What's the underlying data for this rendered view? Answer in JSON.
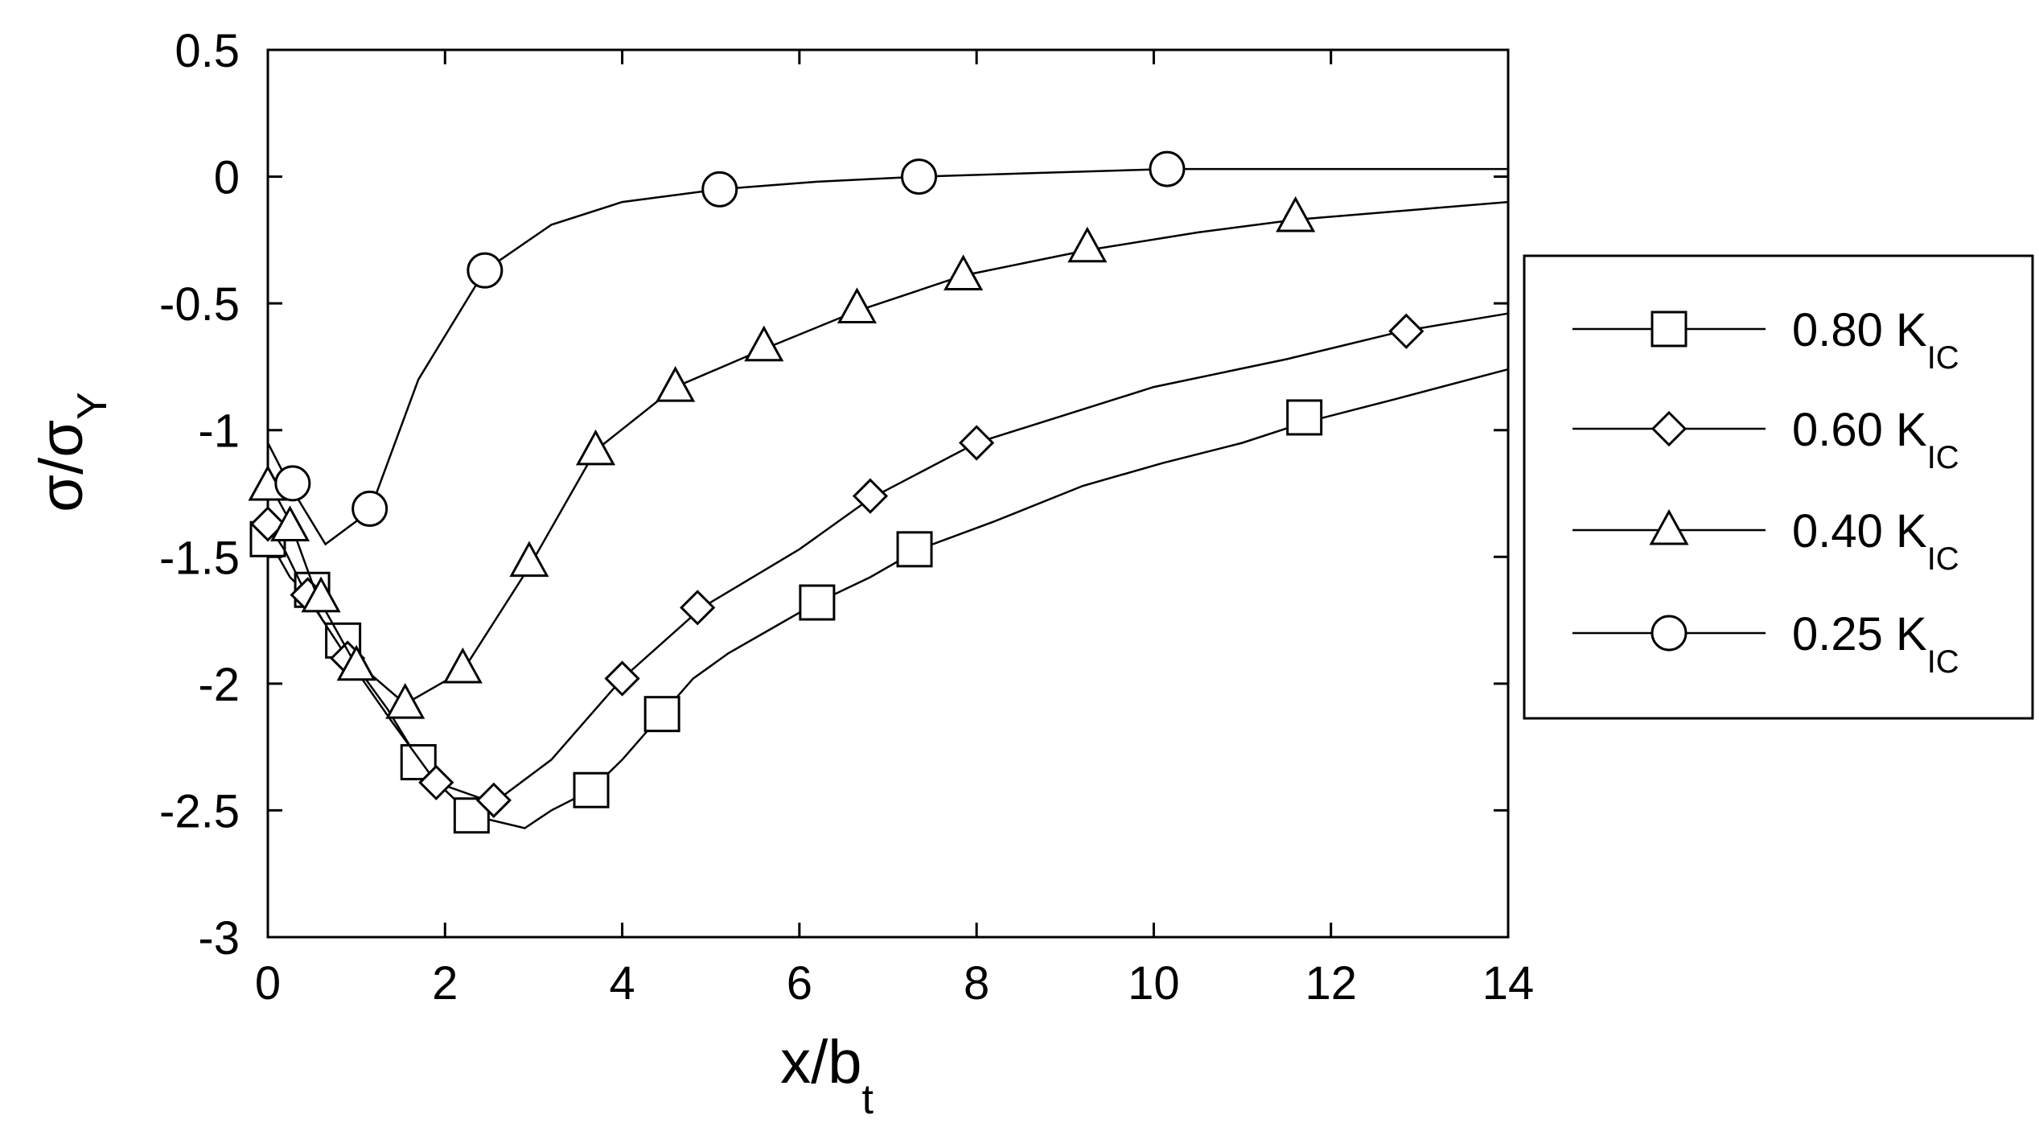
{
  "chart_data": {
    "type": "line",
    "title": "",
    "xlabel": "x/b",
    "xlabel_subscript": "t",
    "ylabel": "σ/σ",
    "ylabel_subscript": "Y",
    "xlim": [
      0,
      14
    ],
    "ylim": [
      -3,
      0.5
    ],
    "x_ticks": [
      0,
      2,
      4,
      6,
      8,
      10,
      12,
      14
    ],
    "x_tick_labels": [
      "0",
      "2",
      "4",
      "6",
      "8",
      "10",
      "12",
      "14"
    ],
    "y_ticks": [
      0.5,
      0,
      -0.5,
      -1,
      -1.5,
      -2,
      -2.5,
      -3
    ],
    "y_tick_labels": [
      "0.5",
      "0",
      "-0.5",
      "-1",
      "-1.5",
      "-2",
      "-2.5",
      "-3"
    ],
    "grid": false,
    "legend_position": "right",
    "series": [
      {
        "name": "0.80 K",
        "name_subscript": "IC",
        "marker": "square",
        "line": [
          [
            0,
            -1.42
          ],
          [
            0.12,
            -1.5
          ],
          [
            0.25,
            -1.58
          ],
          [
            0.45,
            -1.65
          ],
          [
            0.62,
            -1.75
          ],
          [
            0.85,
            -1.85
          ],
          [
            1.1,
            -1.98
          ],
          [
            1.35,
            -2.1
          ],
          [
            1.7,
            -2.3
          ],
          [
            2.0,
            -2.42
          ],
          [
            2.3,
            -2.52
          ],
          [
            2.9,
            -2.57
          ],
          [
            3.2,
            -2.5
          ],
          [
            3.65,
            -2.42
          ],
          [
            4.0,
            -2.3
          ],
          [
            4.45,
            -2.12
          ],
          [
            4.8,
            -1.98
          ],
          [
            5.2,
            -1.88
          ],
          [
            5.7,
            -1.78
          ],
          [
            6.2,
            -1.68
          ],
          [
            6.8,
            -1.58
          ],
          [
            7.35,
            -1.47
          ],
          [
            8.2,
            -1.36
          ],
          [
            9.2,
            -1.22
          ],
          [
            10.1,
            -1.13
          ],
          [
            11.0,
            -1.05
          ],
          [
            11.7,
            -0.97
          ],
          [
            12.7,
            -0.88
          ],
          [
            14.0,
            -0.76
          ]
        ],
        "markers": [
          [
            0,
            -1.43
          ],
          [
            0.5,
            -1.63
          ],
          [
            0.85,
            -1.83
          ],
          [
            1.7,
            -2.31
          ],
          [
            2.3,
            -2.52
          ],
          [
            3.65,
            -2.42
          ],
          [
            4.45,
            -2.12
          ],
          [
            6.2,
            -1.68
          ],
          [
            7.3,
            -1.47
          ],
          [
            11.7,
            -0.95
          ]
        ]
      },
      {
        "name": "0.60 K",
        "name_subscript": "IC",
        "marker": "diamond",
        "line": [
          [
            0,
            -1.37
          ],
          [
            0.2,
            -1.48
          ],
          [
            0.45,
            -1.66
          ],
          [
            0.9,
            -1.9
          ],
          [
            1.4,
            -2.15
          ],
          [
            1.9,
            -2.39
          ],
          [
            2.55,
            -2.47
          ],
          [
            3.2,
            -2.3
          ],
          [
            4.0,
            -1.98
          ],
          [
            4.9,
            -1.7
          ],
          [
            6.0,
            -1.47
          ],
          [
            6.8,
            -1.27
          ],
          [
            8.0,
            -1.05
          ],
          [
            9.0,
            -0.94
          ],
          [
            10.0,
            -0.83
          ],
          [
            11.5,
            -0.72
          ],
          [
            12.8,
            -0.61
          ],
          [
            14.0,
            -0.54
          ]
        ],
        "markers": [
          [
            0,
            -1.37
          ],
          [
            0.45,
            -1.65
          ],
          [
            0.9,
            -1.9
          ],
          [
            1.9,
            -2.39
          ],
          [
            2.55,
            -2.46
          ],
          [
            4.0,
            -1.98
          ],
          [
            4.85,
            -1.7
          ],
          [
            6.8,
            -1.26
          ],
          [
            8.0,
            -1.05
          ],
          [
            12.85,
            -0.61
          ]
        ]
      },
      {
        "name": "0.40 K",
        "name_subscript": "IC",
        "marker": "triangle",
        "line": [
          [
            0,
            -1.2
          ],
          [
            0.25,
            -1.36
          ],
          [
            0.55,
            -1.65
          ],
          [
            0.95,
            -1.9
          ],
          [
            1.55,
            -2.08
          ],
          [
            2.2,
            -1.95
          ],
          [
            2.95,
            -1.54
          ],
          [
            3.7,
            -1.08
          ],
          [
            4.6,
            -0.83
          ],
          [
            5.6,
            -0.68
          ],
          [
            6.65,
            -0.53
          ],
          [
            7.85,
            -0.39
          ],
          [
            9.25,
            -0.29
          ],
          [
            10.5,
            -0.22
          ],
          [
            11.6,
            -0.17
          ],
          [
            14.0,
            -0.1
          ]
        ],
        "markers": [
          [
            0,
            -1.22
          ],
          [
            0.25,
            -1.38
          ],
          [
            0.6,
            -1.66
          ],
          [
            1.0,
            -1.93
          ],
          [
            1.55,
            -2.08
          ],
          [
            2.2,
            -1.94
          ],
          [
            2.95,
            -1.52
          ],
          [
            3.7,
            -1.08
          ],
          [
            4.6,
            -0.83
          ],
          [
            5.6,
            -0.67
          ],
          [
            6.65,
            -0.52
          ],
          [
            7.85,
            -0.39
          ],
          [
            9.25,
            -0.28
          ],
          [
            11.6,
            -0.16
          ]
        ]
      },
      {
        "name": "0.25 K",
        "name_subscript": "IC",
        "marker": "circle",
        "line": [
          [
            0,
            -1.05
          ],
          [
            0.25,
            -1.22
          ],
          [
            0.65,
            -1.45
          ],
          [
            1.15,
            -1.32
          ],
          [
            1.7,
            -0.8
          ],
          [
            2.45,
            -0.37
          ],
          [
            3.2,
            -0.19
          ],
          [
            4.0,
            -0.1
          ],
          [
            5.1,
            -0.05
          ],
          [
            6.2,
            -0.02
          ],
          [
            7.35,
            0.0
          ],
          [
            10.15,
            0.03
          ],
          [
            14.0,
            0.03
          ]
        ],
        "markers": [
          [
            0.28,
            -1.21
          ],
          [
            1.15,
            -1.31
          ],
          [
            2.45,
            -0.37
          ],
          [
            5.1,
            -0.05
          ],
          [
            7.35,
            0.0
          ],
          [
            10.15,
            0.03
          ]
        ]
      }
    ]
  }
}
